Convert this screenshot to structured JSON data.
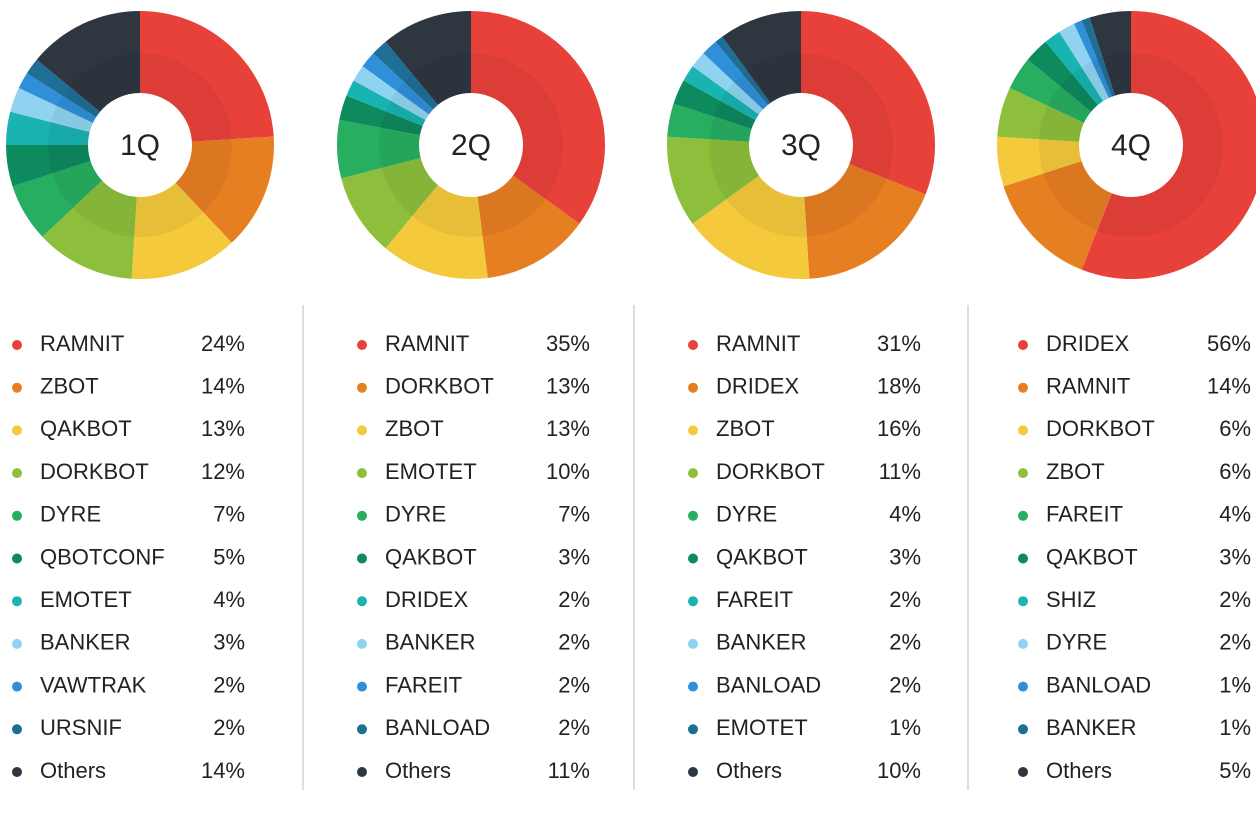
{
  "chart_data": [
    {
      "type": "pie",
      "title": "1Q",
      "categories": [
        "RAMNIT",
        "ZBOT",
        "QAKBOT",
        "DORKBOT",
        "DYRE",
        "QBOTCONF",
        "EMOTET",
        "BANKER",
        "VAWTRAK",
        "URSNIF",
        "Others"
      ],
      "values": [
        24,
        14,
        13,
        12,
        7,
        5,
        4,
        3,
        2,
        2,
        14
      ],
      "value_labels": [
        "24%",
        "14%",
        "13%",
        "12%",
        "7%",
        "5%",
        "4%",
        "3%",
        "2%",
        "2%",
        "14%"
      ],
      "colors": [
        "#e8413a",
        "#e67e22",
        "#f4c93b",
        "#8dbf3c",
        "#27ae60",
        "#0e8a5f",
        "#19b3b1",
        "#8fd3f0",
        "#2f8fd8",
        "#1f6e96",
        "#2e3640"
      ]
    },
    {
      "type": "pie",
      "title": "2Q",
      "categories": [
        "RAMNIT",
        "DORKBOT",
        "ZBOT",
        "EMOTET",
        "DYRE",
        "QAKBOT",
        "DRIDEX",
        "BANKER",
        "FAREIT",
        "BANLOAD",
        "Others"
      ],
      "values": [
        35,
        13,
        13,
        10,
        7,
        3,
        2,
        2,
        2,
        2,
        11
      ],
      "value_labels": [
        "35%",
        "13%",
        "13%",
        "10%",
        "7%",
        "3%",
        "2%",
        "2%",
        "2%",
        "2%",
        "11%"
      ],
      "colors": [
        "#e8413a",
        "#e67e22",
        "#f4c93b",
        "#8dbf3c",
        "#27ae60",
        "#0e8a5f",
        "#19b3b1",
        "#8fd3f0",
        "#2f8fd8",
        "#1f6e96",
        "#2e3640"
      ]
    },
    {
      "type": "pie",
      "title": "3Q",
      "categories": [
        "RAMNIT",
        "DRIDEX",
        "ZBOT",
        "DORKBOT",
        "DYRE",
        "QAKBOT",
        "FAREIT",
        "BANKER",
        "BANLOAD",
        "EMOTET",
        "Others"
      ],
      "values": [
        31,
        18,
        16,
        11,
        4,
        3,
        2,
        2,
        2,
        1,
        10
      ],
      "value_labels": [
        "31%",
        "18%",
        "16%",
        "11%",
        "4%",
        "3%",
        "2%",
        "2%",
        "2%",
        "1%",
        "10%"
      ],
      "colors": [
        "#e8413a",
        "#e67e22",
        "#f4c93b",
        "#8dbf3c",
        "#27ae60",
        "#0e8a5f",
        "#19b3b1",
        "#8fd3f0",
        "#2f8fd8",
        "#1f6e96",
        "#2e3640"
      ]
    },
    {
      "type": "pie",
      "title": "4Q",
      "categories": [
        "DRIDEX",
        "RAMNIT",
        "DORKBOT",
        "ZBOT",
        "FAREIT",
        "QAKBOT",
        "SHIZ",
        "DYRE",
        "BANLOAD",
        "BANKER",
        "Others"
      ],
      "values": [
        56,
        14,
        6,
        6,
        4,
        3,
        2,
        2,
        1,
        1,
        5
      ],
      "value_labels": [
        "56%",
        "14%",
        "6%",
        "6%",
        "4%",
        "3%",
        "2%",
        "2%",
        "1%",
        "1%",
        "5%"
      ],
      "colors": [
        "#e8413a",
        "#e67e22",
        "#f4c93b",
        "#8dbf3c",
        "#27ae60",
        "#0e8a5f",
        "#19b3b1",
        "#8fd3f0",
        "#2f8fd8",
        "#1f6e96",
        "#2e3640"
      ]
    }
  ]
}
